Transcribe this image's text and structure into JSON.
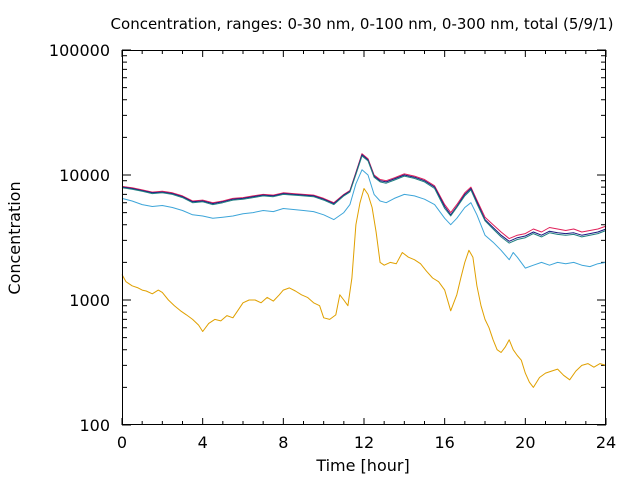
{
  "chart_data": {
    "type": "line",
    "title": "Concentration, ranges: 0-30 nm, 0-100 nm, 0-300 nm, total (5/9/1)",
    "xlabel": "Time [hour]",
    "ylabel": "Concentration",
    "xlim": [
      0,
      24
    ],
    "ylim": [
      100,
      100000
    ],
    "yscale": "log",
    "xticks": [
      0,
      4,
      8,
      12,
      16,
      20,
      24
    ],
    "xtick_labels": [
      "0",
      "4",
      "8",
      "12",
      "16",
      "20",
      "24"
    ],
    "yticks": [
      100,
      1000,
      10000,
      100000
    ],
    "ytick_labels": [
      "100",
      "1000",
      "10000",
      "100000"
    ],
    "grid": false,
    "legend": "none",
    "series": [
      {
        "color": "#e0a000",
        "x": [
          0,
          0.2,
          0.5,
          0.8,
          1.0,
          1.2,
          1.5,
          1.8,
          2.0,
          2.3,
          2.6,
          2.9,
          3.2,
          3.5,
          3.8,
          4.0,
          4.3,
          4.6,
          4.9,
          5.2,
          5.5,
          5.8,
          6.0,
          6.3,
          6.6,
          6.9,
          7.2,
          7.5,
          7.8,
          8.0,
          8.3,
          8.6,
          8.9,
          9.2,
          9.5,
          9.8,
          10.0,
          10.3,
          10.6,
          10.8,
          11.0,
          11.2,
          11.4,
          11.6,
          11.8,
          12.0,
          12.2,
          12.4,
          12.6,
          12.8,
          13.0,
          13.3,
          13.6,
          13.9,
          14.2,
          14.5,
          14.8,
          15.1,
          15.4,
          15.7,
          16.0,
          16.3,
          16.6,
          16.8,
          17.0,
          17.2,
          17.4,
          17.6,
          17.8,
          18.0,
          18.2,
          18.4,
          18.6,
          18.8,
          19.0,
          19.2,
          19.4,
          19.6,
          19.8,
          20.0,
          20.2,
          20.4,
          20.7,
          21.0,
          21.3,
          21.6,
          21.9,
          22.2,
          22.5,
          22.8,
          23.1,
          23.4,
          23.7,
          24.0
        ],
        "y": [
          1600,
          1400,
          1300,
          1250,
          1200,
          1180,
          1120,
          1200,
          1150,
          1000,
          900,
          820,
          760,
          700,
          630,
          560,
          650,
          700,
          680,
          750,
          720,
          850,
          950,
          1000,
          1000,
          950,
          1050,
          980,
          1100,
          1200,
          1250,
          1180,
          1100,
          1050,
          950,
          900,
          720,
          700,
          760,
          1100,
          1000,
          900,
          1500,
          4000,
          6000,
          7800,
          7000,
          5500,
          3500,
          2000,
          1900,
          2000,
          1950,
          2400,
          2200,
          2100,
          1950,
          1700,
          1500,
          1400,
          1200,
          820,
          1100,
          1500,
          2000,
          2500,
          2200,
          1300,
          900,
          700,
          600,
          480,
          400,
          380,
          420,
          480,
          400,
          360,
          330,
          260,
          220,
          200,
          240,
          260,
          270,
          280,
          250,
          230,
          270,
          300,
          310,
          290,
          310,
          300
        ]
      },
      {
        "color": "#3da5d9",
        "x": [
          0,
          0.5,
          1.0,
          1.5,
          2.0,
          2.5,
          3.0,
          3.5,
          4.0,
          4.5,
          5.0,
          5.5,
          6.0,
          6.5,
          7.0,
          7.5,
          8.0,
          8.5,
          9.0,
          9.5,
          10.0,
          10.5,
          11.0,
          11.3,
          11.6,
          11.9,
          12.2,
          12.5,
          12.8,
          13.1,
          13.5,
          14.0,
          14.5,
          15.0,
          15.5,
          16.0,
          16.3,
          16.6,
          17.0,
          17.3,
          17.6,
          18.0,
          18.4,
          18.8,
          19.2,
          19.4,
          19.6,
          20.0,
          20.4,
          20.8,
          21.2,
          21.6,
          22.0,
          22.4,
          22.8,
          23.2,
          23.6,
          24.0
        ],
        "y": [
          6500,
          6200,
          5800,
          5600,
          5700,
          5500,
          5200,
          4800,
          4700,
          4500,
          4600,
          4700,
          4900,
          5000,
          5200,
          5100,
          5400,
          5300,
          5200,
          5100,
          4800,
          4400,
          5000,
          5800,
          8500,
          11000,
          10000,
          7000,
          6200,
          6000,
          6500,
          7000,
          6800,
          6400,
          5800,
          4500,
          4000,
          4500,
          5500,
          6000,
          4800,
          3300,
          2900,
          2500,
          2100,
          2400,
          2200,
          1800,
          1900,
          2000,
          1900,
          2000,
          1950,
          2000,
          1900,
          1850,
          1950,
          2000
        ]
      },
      {
        "color": "#e0205a",
        "x": [
          0,
          0.5,
          1.0,
          1.5,
          2.0,
          2.5,
          3.0,
          3.5,
          4.0,
          4.5,
          5.0,
          5.5,
          6.0,
          6.5,
          7.0,
          7.5,
          8.0,
          8.5,
          9.0,
          9.5,
          10.0,
          10.5,
          11.0,
          11.3,
          11.6,
          11.9,
          12.2,
          12.5,
          12.8,
          13.1,
          13.5,
          14.0,
          14.5,
          15.0,
          15.5,
          16.0,
          16.3,
          16.6,
          17.0,
          17.3,
          17.6,
          18.0,
          18.4,
          18.8,
          19.2,
          19.6,
          20.0,
          20.4,
          20.8,
          21.2,
          21.6,
          22.0,
          22.4,
          22.8,
          23.2,
          23.6,
          24.0
        ],
        "y": [
          8100,
          7900,
          7600,
          7300,
          7400,
          7200,
          6800,
          6200,
          6300,
          6000,
          6200,
          6500,
          6600,
          6800,
          7000,
          6900,
          7200,
          7100,
          7000,
          6900,
          6500,
          6000,
          7000,
          7500,
          10500,
          14800,
          13500,
          10000,
          9200,
          9000,
          9500,
          10200,
          9800,
          9200,
          8200,
          5800,
          5000,
          5800,
          7200,
          8000,
          6300,
          4600,
          4000,
          3500,
          3100,
          3300,
          3400,
          3700,
          3500,
          3800,
          3700,
          3600,
          3700,
          3500,
          3600,
          3700,
          3900
        ]
      },
      {
        "color": "#1a1a80",
        "x": [
          0,
          0.5,
          1.0,
          1.5,
          2.0,
          2.5,
          3.0,
          3.5,
          4.0,
          4.5,
          5.0,
          5.5,
          6.0,
          6.5,
          7.0,
          7.5,
          8.0,
          8.5,
          9.0,
          9.5,
          10.0,
          10.5,
          11.0,
          11.3,
          11.6,
          11.9,
          12.2,
          12.5,
          12.8,
          13.1,
          13.5,
          14.0,
          14.5,
          15.0,
          15.5,
          16.0,
          16.3,
          16.6,
          17.0,
          17.3,
          17.6,
          18.0,
          18.4,
          18.8,
          19.2,
          19.6,
          20.0,
          20.4,
          20.8,
          21.2,
          21.6,
          22.0,
          22.4,
          22.8,
          23.2,
          23.6,
          24.0
        ],
        "y": [
          8000,
          7800,
          7500,
          7200,
          7300,
          7100,
          6700,
          6100,
          6200,
          5900,
          6100,
          6400,
          6500,
          6700,
          6900,
          6800,
          7100,
          7000,
          6900,
          6800,
          6400,
          5900,
          6900,
          7400,
          10300,
          14500,
          13200,
          9800,
          9000,
          8800,
          9300,
          10000,
          9600,
          9000,
          8000,
          5600,
          4800,
          5600,
          7000,
          7800,
          6100,
          4400,
          3800,
          3300,
          2950,
          3150,
          3250,
          3500,
          3300,
          3550,
          3450,
          3400,
          3450,
          3300,
          3400,
          3500,
          3700
        ]
      },
      {
        "color": "#208080",
        "x": [
          0,
          0.5,
          1.0,
          1.5,
          2.0,
          2.5,
          3.0,
          3.5,
          4.0,
          4.5,
          5.0,
          5.5,
          6.0,
          6.5,
          7.0,
          7.5,
          8.0,
          8.5,
          9.0,
          9.5,
          10.0,
          10.5,
          11.0,
          11.3,
          11.6,
          11.9,
          12.2,
          12.5,
          12.8,
          13.1,
          13.5,
          14.0,
          14.5,
          15.0,
          15.5,
          16.0,
          16.3,
          16.6,
          17.0,
          17.3,
          17.6,
          18.0,
          18.4,
          18.8,
          19.2,
          19.6,
          20.0,
          20.4,
          20.8,
          21.2,
          21.6,
          22.0,
          22.4,
          22.8,
          23.2,
          23.6,
          24.0
        ],
        "y": [
          7900,
          7700,
          7400,
          7100,
          7200,
          7000,
          6600,
          6000,
          6100,
          5800,
          6000,
          6300,
          6400,
          6600,
          6800,
          6700,
          7000,
          6900,
          6800,
          6700,
          6300,
          5800,
          6800,
          7300,
          10100,
          14200,
          13000,
          9600,
          8800,
          8600,
          9100,
          9800,
          9400,
          8800,
          7800,
          5400,
          4700,
          5500,
          6800,
          7600,
          5900,
          4300,
          3700,
          3200,
          2850,
          3050,
          3150,
          3400,
          3200,
          3450,
          3350,
          3300,
          3350,
          3200,
          3300,
          3400,
          3600
        ]
      }
    ]
  }
}
